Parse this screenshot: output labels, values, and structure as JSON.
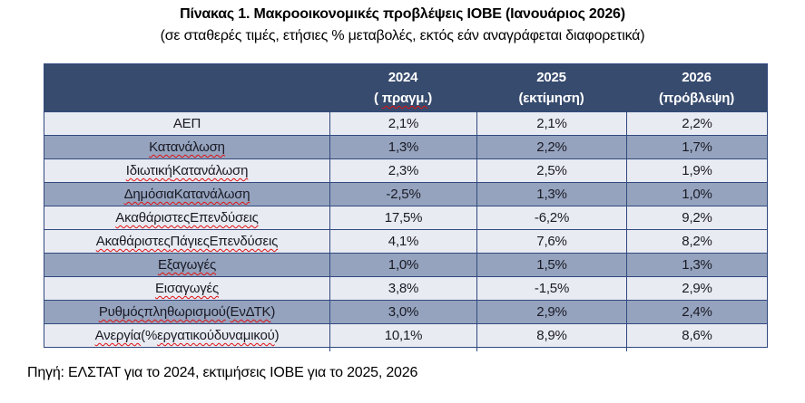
{
  "page": {
    "title": "Πίνακας 1. Μακροοικονομικές προβλέψεις ΙΟΒΕ (Ιανουάριος 2026)",
    "subtitle": "(σε σταθερές τιμές, ετήσιες % μεταβολές, εκτός εάν αναγράφεται διαφορετικά)",
    "source_note": "Πηγή: ΕΛΣΤΑΤ για το 2024, εκτιμήσεις ΙΟΒΕ για το 2025, 2026"
  },
  "colors": {
    "header_bg": "#374B6E",
    "header_text": "#FFFFFF",
    "row_light": "#E9EBF3",
    "row_dark": "#95A3BE",
    "border": "#31497E",
    "cell_text": "#1A1A24",
    "spellcheck_red": "#E01010"
  },
  "table": {
    "columns": [
      {
        "year": "2024",
        "sub": [
          {
            "t": "( ",
            "s": false
          },
          {
            "t": "πραγμ.",
            "s": true
          },
          {
            "t": ")",
            "s": false
          }
        ]
      },
      {
        "year": "2025",
        "sub": [
          {
            "t": "(εκτίμηση)",
            "s": false
          }
        ]
      },
      {
        "year": "2026",
        "sub": [
          {
            "t": "(πρόβλεψη)",
            "s": false
          }
        ]
      }
    ],
    "rows": [
      {
        "shade": "light",
        "label": [
          {
            "t": "ΑΕΠ",
            "s": false
          }
        ],
        "values": [
          "2,1%",
          "2,1%",
          "2,2%"
        ]
      },
      {
        "shade": "dark",
        "label": [
          {
            "t": "Κατανάλωση",
            "s": true
          }
        ],
        "values": [
          "1,3%",
          "2,2%",
          "1,7%"
        ]
      },
      {
        "shade": "light",
        "label": [
          {
            "t": "Ιδιωτική",
            "s": true
          },
          {
            "t": " ",
            "s": false
          },
          {
            "t": "Κατανάλωση",
            "s": true
          }
        ],
        "values": [
          "2,3%",
          "2,5%",
          "1,9%"
        ]
      },
      {
        "shade": "dark",
        "label": [
          {
            "t": "Δημόσια",
            "s": true
          },
          {
            "t": " ",
            "s": false
          },
          {
            "t": "Κατανάλωση",
            "s": true
          }
        ],
        "values": [
          "-2,5%",
          "1,3%",
          "1,0%"
        ]
      },
      {
        "shade": "light",
        "label": [
          {
            "t": "Ακαθάριστες",
            "s": true
          },
          {
            "t": " ",
            "s": false
          },
          {
            "t": "Επενδύσεις",
            "s": true
          }
        ],
        "values": [
          "17,5%",
          "-6,2%",
          "9,2%"
        ]
      },
      {
        "shade": "light",
        "label": [
          {
            "t": "Ακαθάριστες",
            "s": true
          },
          {
            "t": " ",
            "s": false
          },
          {
            "t": "Πάγιες",
            "s": true
          },
          {
            "t": " ",
            "s": false
          },
          {
            "t": "Επενδύσεις",
            "s": true
          }
        ],
        "values": [
          "4,1%",
          "7,6%",
          "8,2%"
        ]
      },
      {
        "shade": "dark",
        "label": [
          {
            "t": "Εξαγωγές",
            "s": true
          }
        ],
        "values": [
          "1,0%",
          "1,5%",
          "1,3%"
        ]
      },
      {
        "shade": "light",
        "label": [
          {
            "t": "Εισαγωγές",
            "s": true
          }
        ],
        "values": [
          "3,8%",
          "-1,5%",
          "2,9%"
        ]
      },
      {
        "shade": "dark",
        "label": [
          {
            "t": "Ρυθμός",
            "s": true
          },
          {
            "t": " ",
            "s": false
          },
          {
            "t": "πληθωρισμού",
            "s": true
          },
          {
            "t": " (",
            "s": false
          },
          {
            "t": "ΕνΔΤΚ",
            "s": true
          },
          {
            "t": ")",
            "s": false
          }
        ],
        "values": [
          "3,0%",
          "2,9%",
          "2,4%"
        ]
      },
      {
        "shade": "light",
        "label": [
          {
            "t": "Ανεργία",
            "s": true
          },
          {
            "t": " (% ",
            "s": false
          },
          {
            "t": "εργατικού",
            "s": true
          },
          {
            "t": " ",
            "s": false
          },
          {
            "t": "δυναμικού",
            "s": true
          },
          {
            "t": ")",
            "s": false
          }
        ],
        "values": [
          "10,1%",
          "8,9%",
          "8,6%"
        ]
      }
    ]
  }
}
